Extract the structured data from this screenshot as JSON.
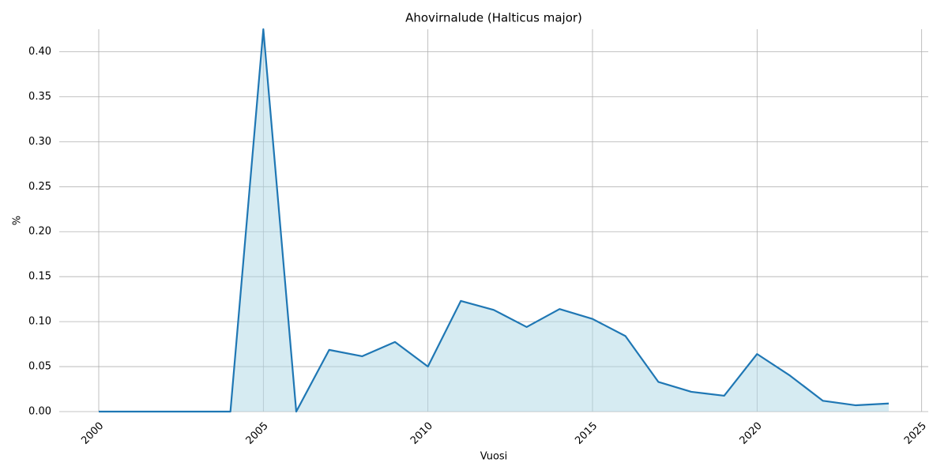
{
  "chart_data": {
    "type": "line",
    "title": "Ahovirnalude (Halticus major)",
    "xlabel": "Vuosi",
    "ylabel": "%",
    "x": [
      2000,
      2001,
      2002,
      2003,
      2004,
      2005,
      2006,
      2007,
      2008,
      2009,
      2010,
      2011,
      2012,
      2013,
      2014,
      2015,
      2016,
      2017,
      2018,
      2019,
      2020,
      2021,
      2022,
      2023,
      2024
    ],
    "series": [
      {
        "name": "%",
        "color": "#1f77b4",
        "fill": "#add8e6",
        "values": [
          0,
          0,
          0,
          0,
          0,
          0.425,
          0,
          0.0686,
          0.0615,
          0.0774,
          0.0501,
          0.123,
          0.113,
          0.094,
          0.114,
          0.103,
          0.084,
          0.033,
          0.022,
          0.0176,
          0.064,
          0.04,
          0.012,
          0.007,
          0.009
        ]
      }
    ],
    "xlim": [
      1998.8,
      2025.2
    ],
    "ylim": [
      0,
      0.425
    ],
    "xticks": [
      2000,
      2005,
      2010,
      2015,
      2020,
      2025
    ],
    "yticks": [
      {
        "value": 0,
        "label": "0.00"
      },
      {
        "value": 0.05,
        "label": "0.05"
      },
      {
        "value": 0.1,
        "label": "0.10"
      },
      {
        "value": 0.15,
        "label": "0.15"
      },
      {
        "value": 0.2,
        "label": "0.20"
      },
      {
        "value": 0.25,
        "label": "0.25"
      },
      {
        "value": 0.3,
        "label": "0.30"
      },
      {
        "value": 0.35,
        "label": "0.35"
      },
      {
        "value": 0.4,
        "label": "0.40"
      }
    ],
    "grid": true
  }
}
